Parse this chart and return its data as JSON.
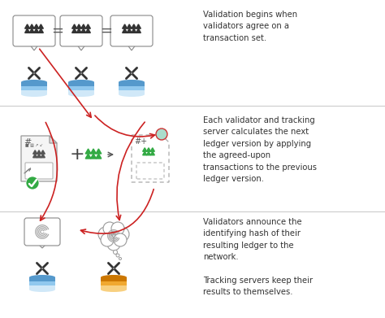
{
  "bg_color": "#ffffff",
  "separator_color": "#cccccc",
  "text_color": "#333333",
  "red_arrow_color": "#cc2222",
  "green_color": "#33aa44",
  "sections_text": [
    "Validation begins when\nvalidators agree on a\ntransaction set.",
    "Each validator and tracking\nserver calculates the next\nledger version by applying\nthe agreed-upon\ntransactions to the previous\nledger version.",
    "Validators announce the\nidentifying hash of their\nresulting ledger to the\nnetwork.\n\nTracking servers keep their\nresults to themselves."
  ],
  "font_size_text": 7.2,
  "triangle_dark": "#333333",
  "triangle_green": "#33aa44",
  "xrp_color": "#333333",
  "blue_layers": [
    "#d0e8f8",
    "#90c8ee",
    "#5599cc"
  ],
  "orange_layers": [
    "#f8d080",
    "#f0a830",
    "#cc7700"
  ],
  "doc_face": "#f5f5f5",
  "doc_edge": "#999999"
}
